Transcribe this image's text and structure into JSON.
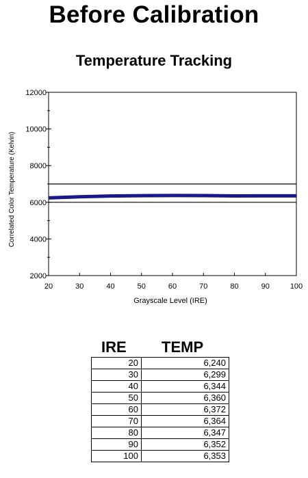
{
  "page_title": "Before Calibration",
  "chart_data": {
    "type": "line",
    "title": "Temperature Tracking",
    "xlabel": "Grayscale Level (IRE)",
    "ylabel": "Correlated Color Temperature (Kelvin)",
    "xlim": [
      20,
      100
    ],
    "ylim": [
      2000,
      12000
    ],
    "x_ticks": [
      20,
      30,
      40,
      50,
      60,
      70,
      80,
      90,
      100
    ],
    "y_ticks": [
      2000,
      4000,
      6000,
      8000,
      10000,
      12000
    ],
    "grid": false,
    "reference_lines": [
      6000,
      7000
    ],
    "series": [
      {
        "x": [
          20,
          30,
          40,
          50,
          60,
          70,
          80,
          90,
          100
        ],
        "values": [
          6240,
          6299,
          6344,
          6360,
          6372,
          6364,
          6347,
          6352,
          6353
        ],
        "color": "#1a1a80"
      }
    ]
  },
  "table": {
    "headers": [
      "IRE",
      "TEMP"
    ],
    "rows": [
      [
        "20",
        "6,240"
      ],
      [
        "30",
        "6,299"
      ],
      [
        "40",
        "6,344"
      ],
      [
        "50",
        "6,360"
      ],
      [
        "60",
        "6,372"
      ],
      [
        "70",
        "6,364"
      ],
      [
        "80",
        "6,347"
      ],
      [
        "90",
        "6,352"
      ],
      [
        "100",
        "6,353"
      ]
    ]
  }
}
